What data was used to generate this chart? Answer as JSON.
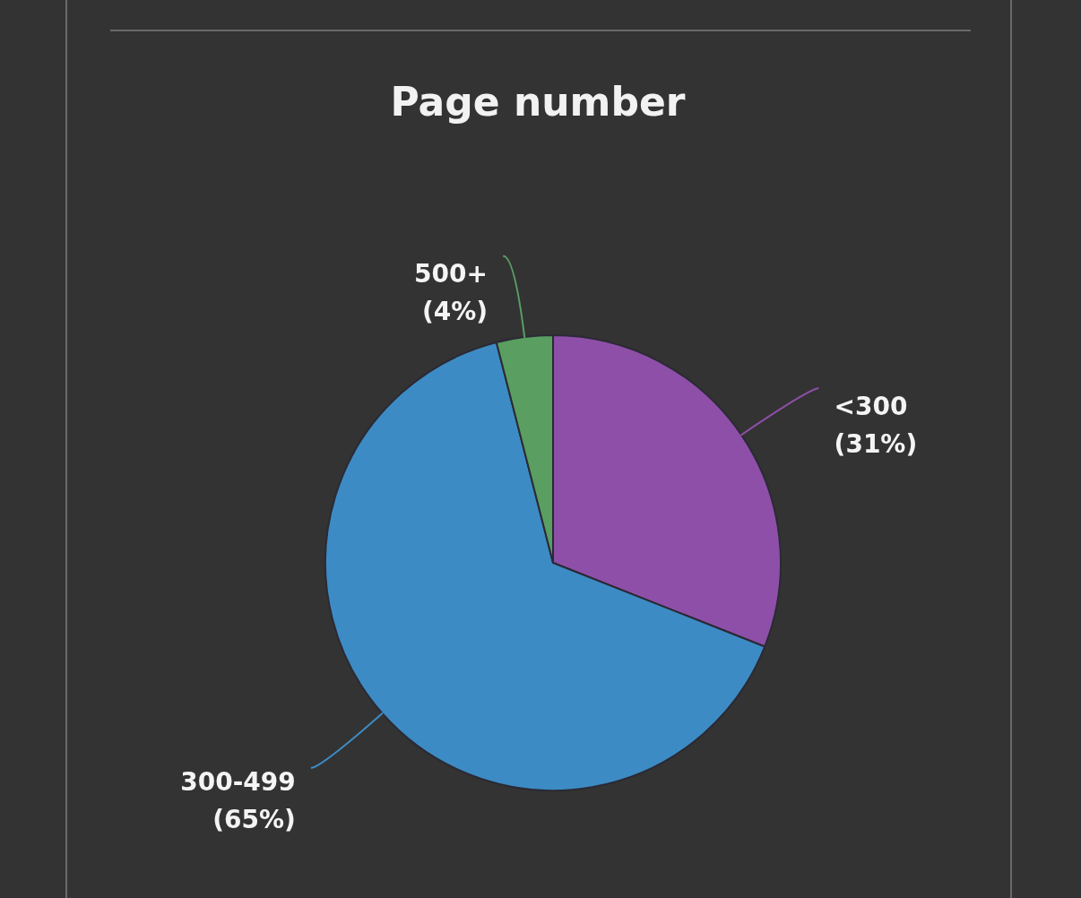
{
  "chart_data": {
    "type": "pie",
    "title": "Page number",
    "categories": [
      "<300",
      "300-499",
      "500+"
    ],
    "values": [
      31,
      65,
      4
    ],
    "colors": [
      "#8e4fa8",
      "#3d8bc4",
      "#5a9e62"
    ],
    "value_labels": [
      "(31%)",
      "(65%)",
      "(4%)"
    ],
    "legend": false
  }
}
